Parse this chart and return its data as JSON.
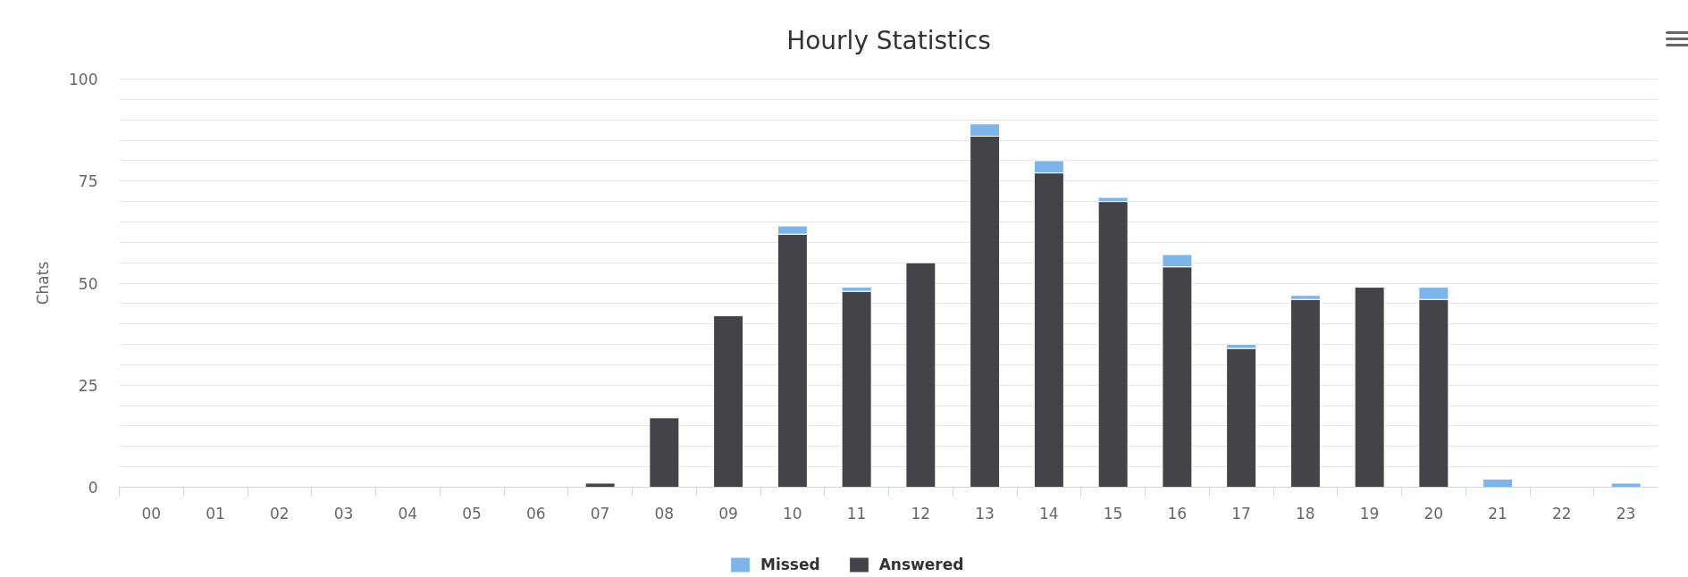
{
  "chart_data": {
    "type": "bar",
    "title": "Hourly Statistics",
    "ylabel": "Chats",
    "categories": [
      "00",
      "01",
      "02",
      "03",
      "04",
      "05",
      "06",
      "07",
      "08",
      "09",
      "10",
      "11",
      "12",
      "13",
      "14",
      "15",
      "16",
      "17",
      "18",
      "19",
      "20",
      "21",
      "22",
      "23"
    ],
    "stacked": true,
    "series": [
      {
        "name": "Answered",
        "color": "#434348",
        "values": [
          0,
          0,
          0,
          0,
          0,
          0,
          0,
          1,
          17,
          42,
          62,
          48,
          55,
          86,
          77,
          70,
          54,
          34,
          46,
          49,
          46,
          0,
          0,
          0
        ]
      },
      {
        "name": "Missed",
        "color": "#7cb5ec",
        "values": [
          0,
          0,
          0,
          0,
          0,
          0,
          0,
          0,
          0,
          0,
          2,
          1,
          0,
          3,
          3,
          1,
          3,
          1,
          1,
          0,
          3,
          2,
          0,
          1
        ]
      }
    ],
    "ylim": [
      0,
      100
    ],
    "yticks": [
      0,
      {
        "value": 5,
        "label": null
      },
      {
        "value": 10,
        "label": null
      },
      {
        "value": 15,
        "label": null
      },
      {
        "value": 20,
        "label": null
      },
      25,
      {
        "value": 30,
        "label": null
      },
      {
        "value": 35,
        "label": null
      },
      {
        "value": 40,
        "label": null
      },
      {
        "value": 45,
        "label": null
      },
      50,
      {
        "value": 55,
        "label": null
      },
      {
        "value": 60,
        "label": null
      },
      {
        "value": 65,
        "label": null
      },
      {
        "value": 70,
        "label": null
      },
      75,
      {
        "value": 80,
        "label": null
      },
      {
        "value": 85,
        "label": null
      },
      {
        "value": 90,
        "label": null
      },
      {
        "value": 95,
        "label": null
      },
      100
    ],
    "grid": "y",
    "legend": "bottom"
  }
}
